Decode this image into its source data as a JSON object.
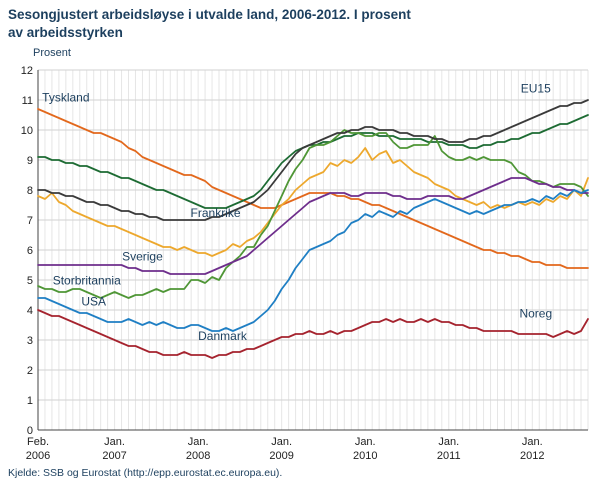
{
  "header": {
    "title_line1": "Sesongjustert arbeidsløyse i utvalde land, 2006-2012. I prosent",
    "title_line2": "av arbeidsstyrken"
  },
  "y_axis": {
    "label": "Prosent",
    "min": 0,
    "max": 12,
    "ticks": [
      12,
      11,
      10,
      9,
      8,
      7,
      6,
      5,
      4,
      3,
      2,
      1,
      0
    ]
  },
  "x_axis": {
    "ticks": [
      {
        "month": 0,
        "line1": "Feb.",
        "line2": "2006"
      },
      {
        "month": 11,
        "line1": "Jan.",
        "line2": "2007"
      },
      {
        "month": 23,
        "line1": "Jan.",
        "line2": "2008"
      },
      {
        "month": 35,
        "line1": "Jan.",
        "line2": "2009"
      },
      {
        "month": 47,
        "line1": "Jan.",
        "line2": "2010"
      },
      {
        "month": 59,
        "line1": "Jan.",
        "line2": "2011"
      },
      {
        "month": 71,
        "line1": "Jan.",
        "line2": "2012"
      }
    ]
  },
  "source": "Kjelde: SSB og Eurostat (http://epp.eurostat.ec.europa.eu).",
  "chart_data": {
    "type": "line",
    "title": "Sesongjustert arbeidsløyse i utvalde land, 2006-2012. I prosent av arbeidsstyrken",
    "ylabel": "Prosent",
    "ylim": [
      0,
      12
    ],
    "grid": "both",
    "x_unit": "month",
    "x_start": "2006-02",
    "x_end": "2012-09",
    "series": [
      {
        "name": "Tyskland",
        "color": "#e2681c",
        "label": {
          "month": 4,
          "value": 10.95
        },
        "values": [
          10.7,
          10.6,
          10.5,
          10.4,
          10.3,
          10.2,
          10.1,
          10.0,
          9.9,
          9.9,
          9.8,
          9.7,
          9.6,
          9.4,
          9.3,
          9.1,
          9.0,
          8.9,
          8.8,
          8.7,
          8.6,
          8.5,
          8.5,
          8.4,
          8.3,
          8.1,
          8.0,
          7.9,
          7.8,
          7.7,
          7.6,
          7.5,
          7.4,
          7.4,
          7.4,
          7.5,
          7.6,
          7.7,
          7.8,
          7.9,
          7.9,
          7.9,
          7.9,
          7.8,
          7.8,
          7.7,
          7.7,
          7.6,
          7.5,
          7.5,
          7.4,
          7.3,
          7.2,
          7.1,
          7.0,
          6.9,
          6.8,
          6.7,
          6.6,
          6.5,
          6.4,
          6.3,
          6.2,
          6.1,
          6.0,
          6.0,
          5.9,
          5.9,
          5.8,
          5.8,
          5.7,
          5.6,
          5.6,
          5.5,
          5.5,
          5.5,
          5.4,
          5.4,
          5.4,
          5.4
        ]
      },
      {
        "name": "Sverige",
        "color": "#eda82d",
        "label": {
          "month": 15,
          "value": 5.65
        },
        "values": [
          7.8,
          7.7,
          7.9,
          7.6,
          7.5,
          7.3,
          7.2,
          7.1,
          7.0,
          6.9,
          6.8,
          6.8,
          6.7,
          6.6,
          6.5,
          6.4,
          6.3,
          6.2,
          6.1,
          6.1,
          6.0,
          6.1,
          6.0,
          5.9,
          5.9,
          5.8,
          5.9,
          6.0,
          6.2,
          6.1,
          6.3,
          6.4,
          6.6,
          6.9,
          7.2,
          7.5,
          7.7,
          8.0,
          8.2,
          8.4,
          8.5,
          8.6,
          8.9,
          8.8,
          9.0,
          8.9,
          9.1,
          9.4,
          9.0,
          9.2,
          9.3,
          8.9,
          9.0,
          8.8,
          8.6,
          8.5,
          8.4,
          8.2,
          8.1,
          8.0,
          7.8,
          7.7,
          7.6,
          7.5,
          7.6,
          7.4,
          7.5,
          7.4,
          7.5,
          7.6,
          7.5,
          7.6,
          7.5,
          7.7,
          7.6,
          7.8,
          7.7,
          8.0,
          7.8,
          8.4
        ]
      },
      {
        "name": "Frankrike",
        "color": "#1d6b33",
        "label": {
          "month": 25.5,
          "value": 7.1
        },
        "values": [
          9.1,
          9.1,
          9.0,
          9.0,
          8.9,
          8.9,
          8.8,
          8.8,
          8.7,
          8.6,
          8.6,
          8.5,
          8.4,
          8.4,
          8.3,
          8.2,
          8.1,
          8.0,
          8.0,
          7.9,
          7.8,
          7.7,
          7.6,
          7.5,
          7.4,
          7.4,
          7.4,
          7.4,
          7.5,
          7.6,
          7.7,
          7.8,
          8.0,
          8.3,
          8.6,
          8.9,
          9.1,
          9.3,
          9.4,
          9.5,
          9.5,
          9.6,
          9.6,
          9.7,
          9.8,
          9.8,
          9.9,
          9.9,
          9.9,
          9.8,
          9.8,
          9.8,
          9.7,
          9.7,
          9.7,
          9.7,
          9.6,
          9.6,
          9.6,
          9.5,
          9.5,
          9.5,
          9.4,
          9.4,
          9.5,
          9.5,
          9.6,
          9.6,
          9.7,
          9.7,
          9.8,
          9.9,
          9.9,
          10.0,
          10.1,
          10.2,
          10.2,
          10.3,
          10.4,
          10.5
        ]
      },
      {
        "name": "USA",
        "color": "#4f9636",
        "label": {
          "month": 8,
          "value": 4.15
        },
        "values": [
          4.8,
          4.7,
          4.7,
          4.6,
          4.6,
          4.7,
          4.7,
          4.6,
          4.5,
          4.4,
          4.5,
          4.6,
          4.5,
          4.4,
          4.5,
          4.5,
          4.6,
          4.7,
          4.6,
          4.7,
          4.7,
          4.7,
          5.0,
          5.0,
          4.9,
          5.1,
          5.0,
          5.4,
          5.6,
          5.8,
          6.1,
          6.1,
          6.5,
          6.8,
          7.3,
          7.8,
          8.3,
          8.7,
          9.0,
          9.4,
          9.5,
          9.5,
          9.6,
          9.8,
          10.0,
          9.9,
          9.9,
          9.8,
          9.8,
          9.9,
          9.9,
          9.6,
          9.4,
          9.4,
          9.5,
          9.5,
          9.5,
          9.8,
          9.3,
          9.1,
          9.0,
          9.0,
          9.1,
          9.0,
          9.1,
          9.0,
          9.0,
          9.0,
          8.9,
          8.6,
          8.5,
          8.3,
          8.3,
          8.2,
          8.1,
          8.2,
          8.2,
          8.2,
          8.1,
          7.8
        ]
      },
      {
        "name": "Storbritannia",
        "color": "#6e2e8c",
        "label": {
          "month": 7,
          "value": 4.85
        },
        "values": [
          5.5,
          5.5,
          5.5,
          5.5,
          5.5,
          5.5,
          5.5,
          5.5,
          5.5,
          5.5,
          5.5,
          5.5,
          5.5,
          5.4,
          5.4,
          5.3,
          5.3,
          5.3,
          5.3,
          5.2,
          5.2,
          5.2,
          5.2,
          5.2,
          5.2,
          5.3,
          5.4,
          5.5,
          5.6,
          5.7,
          5.8,
          6.0,
          6.2,
          6.4,
          6.6,
          6.8,
          7.0,
          7.2,
          7.4,
          7.6,
          7.7,
          7.8,
          7.9,
          7.9,
          7.9,
          7.8,
          7.8,
          7.9,
          7.9,
          7.9,
          7.9,
          7.8,
          7.8,
          7.7,
          7.7,
          7.7,
          7.8,
          7.8,
          7.8,
          7.8,
          7.7,
          7.7,
          7.8,
          7.9,
          8.0,
          8.1,
          8.2,
          8.3,
          8.4,
          8.4,
          8.4,
          8.3,
          8.2,
          8.2,
          8.1,
          8.1,
          8.0,
          8.0,
          7.9,
          7.9
        ]
      },
      {
        "name": "Danmark",
        "color": "#1f7fc4",
        "label": {
          "month": 26.5,
          "value": 3.0
        },
        "values": [
          4.4,
          4.4,
          4.3,
          4.2,
          4.1,
          4.0,
          3.9,
          3.9,
          3.8,
          3.7,
          3.6,
          3.6,
          3.6,
          3.7,
          3.6,
          3.5,
          3.6,
          3.5,
          3.6,
          3.5,
          3.4,
          3.4,
          3.5,
          3.5,
          3.4,
          3.3,
          3.3,
          3.4,
          3.3,
          3.4,
          3.5,
          3.6,
          3.8,
          4.0,
          4.3,
          4.7,
          5.0,
          5.4,
          5.7,
          6.0,
          6.1,
          6.2,
          6.3,
          6.5,
          6.6,
          6.9,
          7.0,
          7.2,
          7.1,
          7.3,
          7.2,
          7.1,
          7.3,
          7.2,
          7.4,
          7.5,
          7.6,
          7.7,
          7.6,
          7.5,
          7.4,
          7.3,
          7.2,
          7.3,
          7.2,
          7.3,
          7.4,
          7.5,
          7.5,
          7.6,
          7.6,
          7.7,
          7.6,
          7.8,
          7.7,
          7.9,
          7.8,
          8.0,
          7.9,
          8.0
        ]
      },
      {
        "name": "Noreg",
        "color": "#a5232e",
        "label": {
          "month": 71.5,
          "value": 3.75
        },
        "values": [
          4.0,
          3.9,
          3.8,
          3.8,
          3.7,
          3.6,
          3.5,
          3.4,
          3.3,
          3.2,
          3.1,
          3.0,
          2.9,
          2.8,
          2.8,
          2.7,
          2.6,
          2.6,
          2.5,
          2.5,
          2.5,
          2.6,
          2.5,
          2.5,
          2.5,
          2.4,
          2.5,
          2.5,
          2.6,
          2.6,
          2.7,
          2.7,
          2.8,
          2.9,
          3.0,
          3.1,
          3.1,
          3.2,
          3.2,
          3.3,
          3.2,
          3.2,
          3.3,
          3.2,
          3.3,
          3.3,
          3.4,
          3.5,
          3.6,
          3.6,
          3.7,
          3.6,
          3.7,
          3.6,
          3.6,
          3.7,
          3.6,
          3.7,
          3.6,
          3.6,
          3.5,
          3.5,
          3.4,
          3.4,
          3.3,
          3.3,
          3.3,
          3.3,
          3.3,
          3.2,
          3.2,
          3.2,
          3.2,
          3.2,
          3.1,
          3.2,
          3.3,
          3.2,
          3.3,
          3.7
        ]
      },
      {
        "name": "EU15",
        "color": "#3a3a3a",
        "label": {
          "month": 71.5,
          "value": 11.25
        },
        "values": [
          8.0,
          8.0,
          7.9,
          7.9,
          7.8,
          7.8,
          7.7,
          7.6,
          7.6,
          7.5,
          7.5,
          7.4,
          7.3,
          7.3,
          7.2,
          7.2,
          7.1,
          7.1,
          7.0,
          7.0,
          7.0,
          7.0,
          7.0,
          7.0,
          7.0,
          7.1,
          7.1,
          7.2,
          7.3,
          7.4,
          7.5,
          7.6,
          7.8,
          8.0,
          8.3,
          8.6,
          8.9,
          9.2,
          9.4,
          9.5,
          9.6,
          9.7,
          9.8,
          9.9,
          9.9,
          10.0,
          10.0,
          10.1,
          10.1,
          10.0,
          10.0,
          10.0,
          9.9,
          9.9,
          9.8,
          9.8,
          9.8,
          9.7,
          9.7,
          9.6,
          9.6,
          9.6,
          9.7,
          9.7,
          9.8,
          9.8,
          9.9,
          10.0,
          10.1,
          10.2,
          10.3,
          10.4,
          10.5,
          10.6,
          10.7,
          10.8,
          10.8,
          10.9,
          10.9,
          11.0
        ]
      }
    ]
  }
}
